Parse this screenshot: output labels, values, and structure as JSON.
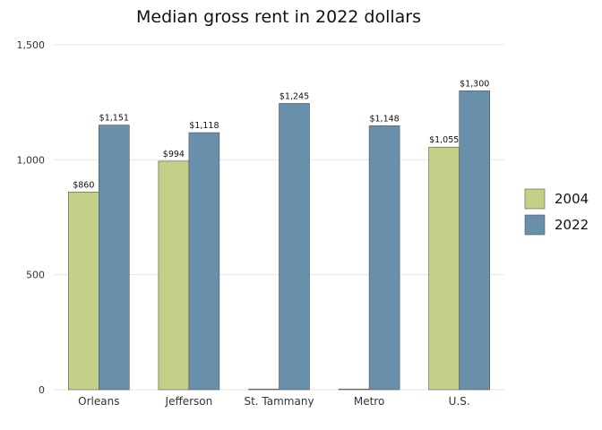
{
  "chart_data": {
    "type": "bar",
    "title": "Median gross rent in 2022 dollars",
    "categories": [
      "Orleans",
      "Jefferson",
      "St. Tammany",
      "Metro",
      "U.S."
    ],
    "series": [
      {
        "name": "2004",
        "color": "#c4cf88",
        "values": [
          860,
          994,
          0,
          0,
          1055
        ],
        "labels": [
          "$860",
          "$994",
          "",
          "",
          "$1,055"
        ]
      },
      {
        "name": "2022",
        "color": "#6890aa",
        "values": [
          1151,
          1118,
          1245,
          1148,
          1300
        ],
        "labels": [
          "$1,151",
          "$1,118",
          "$1,245",
          "$1,148",
          "$1,300"
        ]
      }
    ],
    "ylim": [
      0,
      1500
    ],
    "yticks": [
      0,
      500,
      1000,
      1500
    ],
    "ytick_labels": [
      "0",
      "500",
      "1,000",
      "1,500"
    ],
    "xlabel": "",
    "ylabel": "",
    "grid": true,
    "legend_position": "right"
  }
}
